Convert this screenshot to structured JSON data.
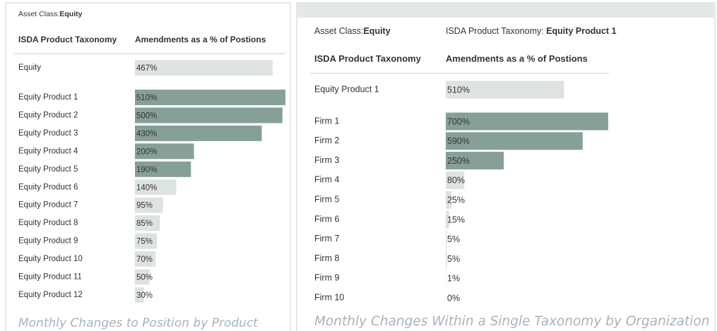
{
  "chart_data": [
    {
      "type": "bar",
      "orientation": "horizontal",
      "asset_class_label": "Asset Class:",
      "asset_class": "Equity",
      "column_headers": [
        "ISDA Product Taxonomy",
        "Amendments as a % of Postions"
      ],
      "total_category": "Equity",
      "total_value": 467,
      "total_value_label": "467%",
      "total_color": "#dde3e0",
      "categories": [
        "Equity Product 1",
        "Equity Product 2",
        "Equity Product 3",
        "Equity Product 4",
        "Equity Product 5",
        "Equity Product 6",
        "Equity Product 7",
        "Equity Product 8",
        "Equity Product 9",
        "Equity Product 10",
        "Equity Product 11",
        "Equity Product 12"
      ],
      "values": [
        510,
        500,
        430,
        200,
        190,
        140,
        95,
        85,
        75,
        70,
        50,
        30
      ],
      "value_labels": [
        "510%",
        "500%",
        "430%",
        "200%",
        "190%",
        "140%",
        "95%",
        "85%",
        "75%",
        "70%",
        "50%",
        "30%"
      ],
      "colors": [
        "#86a095",
        "#86a095",
        "#86a095",
        "#86a095",
        "#86a095",
        "#dde3e0",
        "#dde3e0",
        "#dde3e0",
        "#dde3e0",
        "#dde3e0",
        "#dde3e0",
        "#dde3e0"
      ],
      "xlim": [
        0,
        510
      ],
      "caption": "Monthly Changes to Position by Product"
    },
    {
      "type": "bar",
      "orientation": "horizontal",
      "asset_class_label": "Asset Class:",
      "asset_class": "Equity",
      "filter_label": "ISDA Product Taxonomy: ",
      "filter": "Equity Product 1",
      "column_headers": [
        "ISDA Product Taxonomy",
        "Amendments as a % of Postions"
      ],
      "total_category": "Equity Product 1",
      "total_value": 510,
      "total_value_label": "510%",
      "total_color": "#dde3e0",
      "categories": [
        "Firm 1",
        "Firm 2",
        "Firm 3",
        "Firm 4",
        "Firm 5",
        "Firm 6",
        "Firm 7",
        "Firm 8",
        "Firm 9",
        "Firm 10"
      ],
      "values": [
        700,
        590,
        250,
        80,
        25,
        15,
        5,
        5,
        1,
        0
      ],
      "value_labels": [
        "700%",
        "590%",
        "250%",
        "80%",
        "25%",
        "15%",
        "5%",
        "5%",
        "1%",
        "0%"
      ],
      "colors": [
        "#86a095",
        "#86a095",
        "#86a095",
        "#dde3e0",
        "#dde3e0",
        "#dde3e0",
        "#dde3e0",
        "#dde3e0",
        "#dde3e0",
        "#dde3e0"
      ],
      "xlim": [
        0,
        700
      ],
      "caption": "Monthly Changes Within a Single Taxonomy by Organization"
    }
  ]
}
